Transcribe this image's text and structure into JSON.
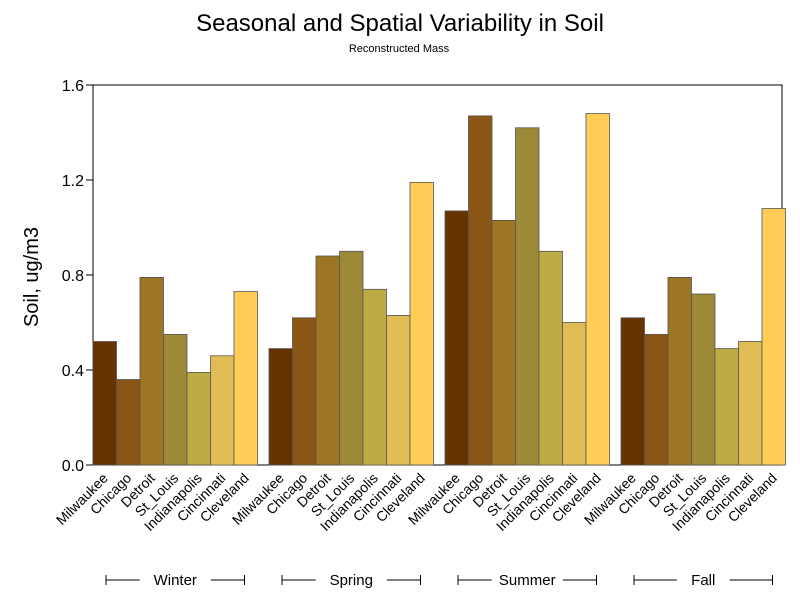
{
  "chart_data": {
    "type": "bar",
    "title": "Seasonal and Spatial Variability in Soil",
    "subtitle": "Reconstructed Mass",
    "ylabel": "Soil, ug/m3",
    "ylim": [
      0,
      1.6
    ],
    "yticks": [
      "0.0",
      "0.4",
      "0.8",
      "1.2",
      "1.6"
    ],
    "categories": [
      "Milwaukee",
      "Chicago",
      "Detroit",
      "St_Louis",
      "Indianapolis",
      "Cincinnati",
      "Cleveland"
    ],
    "groups": [
      {
        "name": "Winter",
        "values": [
          0.52,
          0.36,
          0.79,
          0.55,
          0.39,
          0.46,
          0.73
        ]
      },
      {
        "name": "Spring",
        "values": [
          0.49,
          0.62,
          0.88,
          0.9,
          0.74,
          0.63,
          1.19
        ]
      },
      {
        "name": "Summer",
        "values": [
          1.07,
          1.47,
          1.03,
          1.42,
          0.9,
          0.6,
          1.48
        ]
      },
      {
        "name": "Fall",
        "values": [
          0.62,
          0.55,
          0.79,
          0.72,
          0.49,
          0.52,
          1.08
        ]
      }
    ],
    "colors": [
      "#663300",
      "#8b5516",
      "#9d7624",
      "#9c8a39",
      "#bfab45",
      "#dfbc54",
      "#ffcc55"
    ],
    "grid": false,
    "legend": "none"
  }
}
